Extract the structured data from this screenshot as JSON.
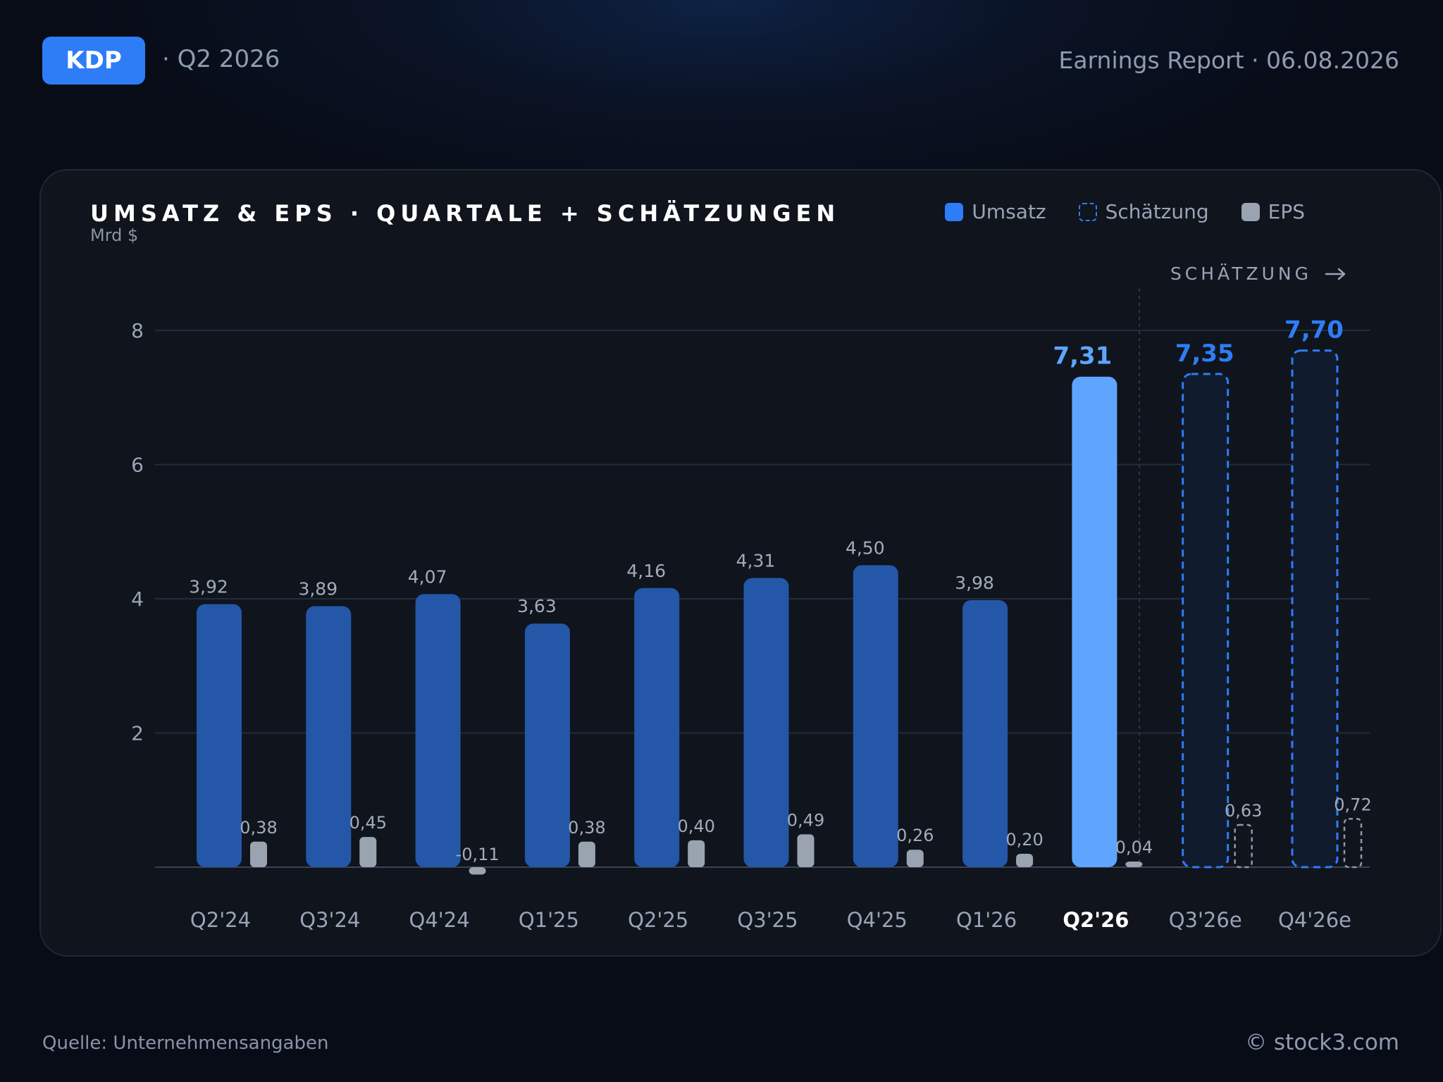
{
  "header": {
    "ticker": "KDP",
    "quarter": "· Q2 2026",
    "report": "Earnings Report · 06.08.2026"
  },
  "legend": {
    "revenue": "Umsatz",
    "estimate": "Schätzung",
    "eps": "EPS"
  },
  "estimate_marker": "SCHÄTZUNG",
  "footer": {
    "source": "Quelle: Unternehmensangaben",
    "copyright": "© stock3.com"
  },
  "colors": {
    "revenue": "#2457a8",
    "revenue_current": "#5fa5ff",
    "estimate": "#2e7df6",
    "eps": "#9aa3b0",
    "accent": "#2e7df6"
  },
  "chart_data": {
    "type": "bar",
    "title": "UMSATZ & EPS · QUARTALE + SCHÄTZUNGEN",
    "ylabel": "Mrd $",
    "ylim": [
      0,
      8
    ],
    "yticks": [
      "2",
      "4",
      "6",
      "8"
    ],
    "categories": [
      "Q2'24",
      "Q3'24",
      "Q4'24",
      "Q1'25",
      "Q2'25",
      "Q3'25",
      "Q4'25",
      "Q1'26",
      "Q2'26",
      "Q3'26e",
      "Q4'26e"
    ],
    "current_index": 8,
    "estimate_from_index": 9,
    "series": [
      {
        "name": "Umsatz",
        "values": [
          3.92,
          3.89,
          4.07,
          3.63,
          4.16,
          4.31,
          4.5,
          3.98,
          7.31,
          7.35,
          7.7
        ],
        "labels": [
          "3,92",
          "3,89",
          "4,07",
          "3,63",
          "4,16",
          "4,31",
          "4,50",
          "3,98",
          "7,31",
          "7,35",
          "7,70"
        ]
      },
      {
        "name": "EPS",
        "values": [
          0.38,
          0.45,
          -0.11,
          0.38,
          0.4,
          0.49,
          0.26,
          0.2,
          0.04,
          0.63,
          0.72
        ],
        "labels": [
          "0,38",
          "0,45",
          "-0,11",
          "0,38",
          "0,40",
          "0,49",
          "0,26",
          "0,20",
          "0,04",
          "0,63",
          "0,72"
        ]
      }
    ],
    "grid": true,
    "legend_position": "top-right"
  }
}
